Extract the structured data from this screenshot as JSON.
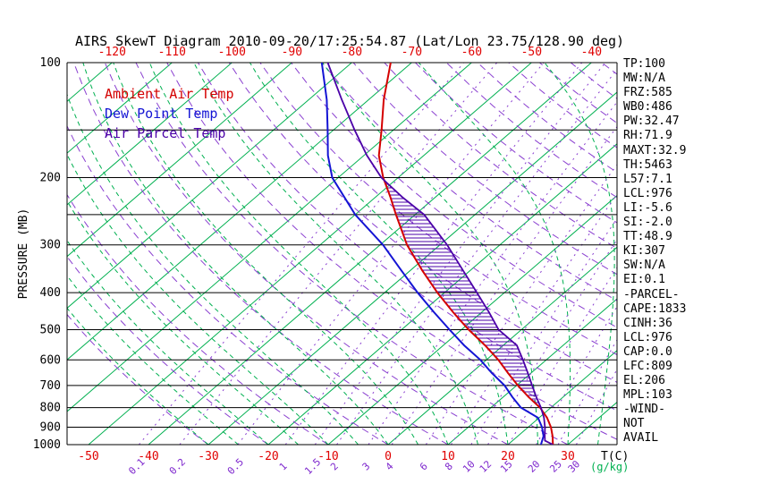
{
  "title": "AIRS SkewT Diagram 2010-09-20/17:25:54.87 (Lat/Lon 23.75/128.90 deg)",
  "colors": {
    "ambient": "#d40000",
    "dewpoint": "#1414d4",
    "parcel": "#4b00a8",
    "isotherm": "#00b050",
    "moist_adiabat": "#00b050",
    "dry_adiabat": "#8a3fd0",
    "mixing_ratio": "#8a3fd0",
    "mixing_label": "#7d26cd",
    "temp_labels": "#e00000",
    "frame": "#000000"
  },
  "legend": {
    "items": [
      {
        "key": "ambient",
        "label": "Ambient Air Temp",
        "color_key": "ambient"
      },
      {
        "key": "dewpoint",
        "label": "Dew Point Temp",
        "color_key": "dewpoint"
      },
      {
        "key": "parcel",
        "label": "Air Parcel Temp",
        "color_key": "parcel"
      }
    ]
  },
  "stats_panel": {
    "lines": [
      "TP:100",
      "MW:N/A",
      "FRZ:585",
      "WB0:486",
      "PW:32.47",
      "RH:71.9",
      "MAXT:32.9",
      "TH:5463",
      "L57:7.1",
      "LCL:976",
      "LI:-5.6",
      "SI:-2.0",
      "TT:48.9",
      "KI:307",
      "SW:N/A",
      "EI:0.1",
      "-PARCEL-",
      "CAPE:1833",
      "CINH:36",
      "LCL:976",
      "CAP:0.0",
      "LFC:809",
      "EL:206",
      "MPL:103",
      "-WIND-",
      "NOT",
      "AVAIL"
    ]
  },
  "chart_data": {
    "type": "line",
    "variant": "skew_t_log_p",
    "title": "AIRS SkewT Diagram 2010-09-20/17:25:54.87 (Lat/Lon 23.75/128.90 deg)",
    "x_axis": {
      "label": "T(C)",
      "ticks_bottom": [
        -50,
        -40,
        -30,
        -20,
        -10,
        0,
        10,
        20,
        30
      ],
      "ticks_top": [
        -120,
        -110,
        -100,
        -90,
        -80,
        -70,
        -60,
        -50,
        -40
      ],
      "skew": true
    },
    "y_axis": {
      "label": "PRESSURE (MB)",
      "scale": "log",
      "range_mb": [
        100,
        1000
      ],
      "ticks": [
        100,
        200,
        300,
        400,
        500,
        600,
        700,
        800,
        900,
        1000
      ],
      "gridlines_mb": [
        100,
        150,
        200,
        250,
        300,
        400,
        500,
        600,
        700,
        800,
        900,
        1000
      ]
    },
    "isotherms_c": {
      "min": -130,
      "max": 40,
      "step": 10
    },
    "mixing_ratio_lines_g_per_kg": [
      0.1,
      0.2,
      0.5,
      1,
      1.5,
      2,
      3,
      4,
      6,
      8,
      10,
      12,
      15,
      20,
      25,
      30
    ],
    "mixing_ratio_unit_label": "(g/kg)",
    "series": [
      {
        "name": "Ambient Air Temp",
        "color": "#d40000",
        "points_p_t": [
          [
            100,
            -73.5
          ],
          [
            125,
            -67.5
          ],
          [
            150,
            -62
          ],
          [
            175,
            -57.5
          ],
          [
            200,
            -52.5
          ],
          [
            225,
            -47.5
          ],
          [
            250,
            -43.2
          ],
          [
            300,
            -35.5
          ],
          [
            350,
            -28
          ],
          [
            400,
            -21.2
          ],
          [
            450,
            -14.8
          ],
          [
            500,
            -8.8
          ],
          [
            550,
            -3
          ],
          [
            600,
            2
          ],
          [
            650,
            6.2
          ],
          [
            700,
            10.2
          ],
          [
            750,
            14.2
          ],
          [
            800,
            18.2
          ],
          [
            850,
            21.3
          ],
          [
            900,
            23.8
          ],
          [
            950,
            25.8
          ],
          [
            1000,
            27.5
          ]
        ]
      },
      {
        "name": "Dew Point Temp",
        "color": "#1414d4",
        "points_p_t": [
          [
            100,
            -85
          ],
          [
            125,
            -77
          ],
          [
            150,
            -71
          ],
          [
            175,
            -66
          ],
          [
            200,
            -61
          ],
          [
            250,
            -50
          ],
          [
            300,
            -39.5
          ],
          [
            350,
            -31.5
          ],
          [
            400,
            -24.5
          ],
          [
            450,
            -18
          ],
          [
            500,
            -12
          ],
          [
            550,
            -6.5
          ],
          [
            600,
            -1
          ],
          [
            650,
            3.5
          ],
          [
            700,
            8
          ],
          [
            750,
            11.5
          ],
          [
            800,
            15
          ],
          [
            850,
            19.8
          ],
          [
            900,
            22.3
          ],
          [
            950,
            24.3
          ],
          [
            1000,
            25.5
          ]
        ]
      },
      {
        "name": "Air Parcel Temp",
        "color": "#4b00a8",
        "points_p_t": [
          [
            100,
            -84
          ],
          [
            125,
            -74.5
          ],
          [
            150,
            -66.5
          ],
          [
            175,
            -59.5
          ],
          [
            200,
            -52.8
          ],
          [
            206,
            -51
          ],
          [
            225,
            -45.5
          ],
          [
            250,
            -38.5
          ],
          [
            300,
            -28.8
          ],
          [
            350,
            -21.2
          ],
          [
            400,
            -14.6
          ],
          [
            450,
            -8.8
          ],
          [
            500,
            -3.8
          ],
          [
            550,
            2.3
          ],
          [
            600,
            6.1
          ],
          [
            650,
            9.5
          ],
          [
            700,
            12.6
          ],
          [
            750,
            15.5
          ],
          [
            800,
            18.35
          ],
          [
            850,
            20.8
          ],
          [
            900,
            22.8
          ],
          [
            950,
            24.5
          ],
          [
            976,
            25.4
          ],
          [
            1000,
            27.5
          ]
        ]
      }
    ],
    "cape_hatch": {
      "between": [
        "Ambient Air Temp",
        "Air Parcel Temp"
      ],
      "upper_mb": 206,
      "lower_mb": 809
    }
  }
}
